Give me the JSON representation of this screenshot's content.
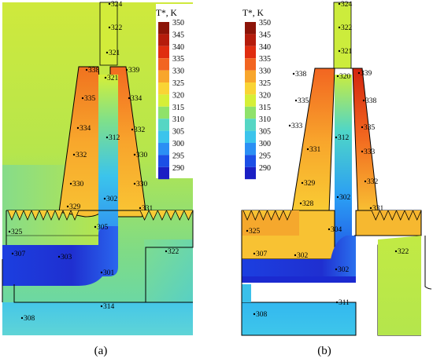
{
  "legend": {
    "title": "T*, K",
    "ticks": [
      "350",
      "345",
      "340",
      "335",
      "330",
      "325",
      "320",
      "315",
      "310",
      "305",
      "300",
      "295",
      "290"
    ]
  },
  "captions": {
    "a": "(a)",
    "b": "(b)"
  },
  "colors": {
    "c350": "#8c1408",
    "c345": "#b51c0c",
    "c340": "#e02d10",
    "c335": "#f26521",
    "c330": "#f8a62c",
    "c325": "#f9d435",
    "c320": "#d6ef37",
    "c315": "#8fe26a",
    "c310": "#55d6c4",
    "c305": "#3bc4ec",
    "c300": "#2b8ff4",
    "c295": "#1c4fe6",
    "c290": "#1a1fc4"
  },
  "panel_a": {
    "labels": [
      {
        "id": "a324",
        "t": "324"
      },
      {
        "id": "a322",
        "t": "322"
      },
      {
        "id": "a321",
        "t": "321"
      },
      {
        "id": "a338",
        "t": "338"
      },
      {
        "id": "a339",
        "t": "339"
      },
      {
        "id": "a321b",
        "t": "321"
      },
      {
        "id": "a335",
        "t": "335"
      },
      {
        "id": "a334",
        "t": "334"
      },
      {
        "id": "a334b",
        "t": "334"
      },
      {
        "id": "a312",
        "t": "312"
      },
      {
        "id": "a332",
        "t": "332"
      },
      {
        "id": "a332b",
        "t": "332"
      },
      {
        "id": "a330",
        "t": "330"
      },
      {
        "id": "a330b",
        "t": "330"
      },
      {
        "id": "a330c",
        "t": "330"
      },
      {
        "id": "a329",
        "t": "329"
      },
      {
        "id": "a302",
        "t": "302"
      },
      {
        "id": "a331",
        "t": "331"
      },
      {
        "id": "a325",
        "t": "325"
      },
      {
        "id": "a305",
        "t": "305"
      },
      {
        "id": "a307",
        "t": "307"
      },
      {
        "id": "a303",
        "t": "303"
      },
      {
        "id": "a322b",
        "t": "322"
      },
      {
        "id": "a301",
        "t": "301"
      },
      {
        "id": "a314",
        "t": "314"
      },
      {
        "id": "a308",
        "t": "308"
      }
    ]
  },
  "panel_b": {
    "labels": [
      {
        "id": "b324",
        "t": "324"
      },
      {
        "id": "b322",
        "t": "322"
      },
      {
        "id": "b321",
        "t": "321"
      },
      {
        "id": "b338",
        "t": "338"
      },
      {
        "id": "b320",
        "t": "320"
      },
      {
        "id": "b339",
        "t": "339"
      },
      {
        "id": "b335",
        "t": "335"
      },
      {
        "id": "b338b",
        "t": "338"
      },
      {
        "id": "b333",
        "t": "333"
      },
      {
        "id": "b312",
        "t": "312"
      },
      {
        "id": "b335b",
        "t": "335"
      },
      {
        "id": "b331",
        "t": "331"
      },
      {
        "id": "b333b",
        "t": "333"
      },
      {
        "id": "b329",
        "t": "329"
      },
      {
        "id": "b302",
        "t": "302"
      },
      {
        "id": "b332",
        "t": "332"
      },
      {
        "id": "b328",
        "t": "328"
      },
      {
        "id": "b331b",
        "t": "331"
      },
      {
        "id": "b325",
        "t": "325"
      },
      {
        "id": "b304",
        "t": "304"
      },
      {
        "id": "b307",
        "t": "307"
      },
      {
        "id": "b302b",
        "t": "302"
      },
      {
        "id": "b322b",
        "t": "322"
      },
      {
        "id": "b302c",
        "t": "302"
      },
      {
        "id": "b311",
        "t": "311"
      },
      {
        "id": "b308",
        "t": "308"
      }
    ]
  }
}
